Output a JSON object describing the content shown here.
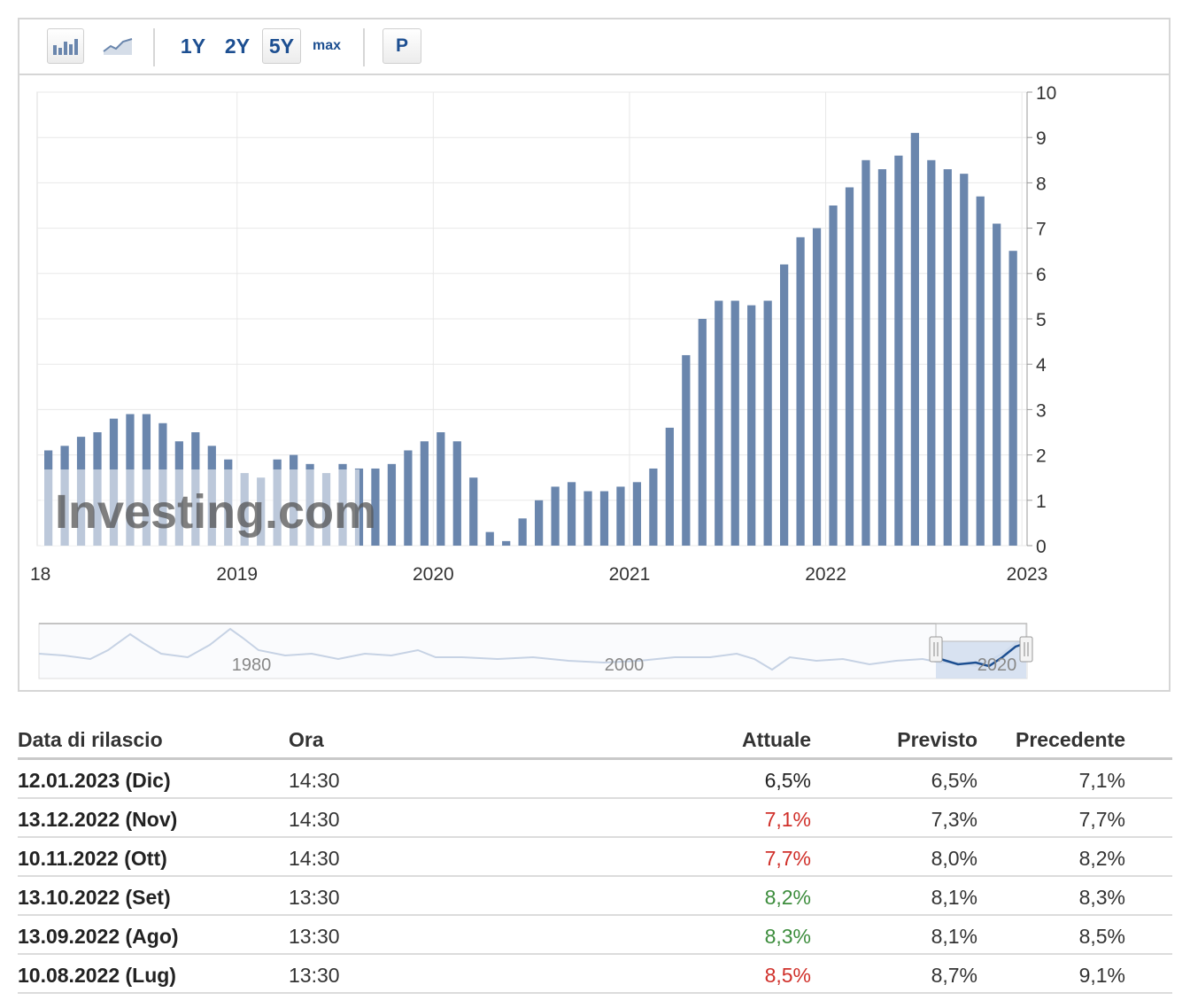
{
  "toolbar": {
    "ranges": [
      "1Y",
      "2Y",
      "5Y",
      "max"
    ],
    "active_range": "5Y",
    "print_label": "P",
    "bar_icon": "bar-chart-icon",
    "line_icon": "line-chart-icon"
  },
  "colors": {
    "bar": "#6a86ad",
    "bar_faded": "#c3cfe0",
    "grid": "#e8e8e8",
    "axis_text": "#333333",
    "positive": "#3d8d3d",
    "negative": "#d0302a",
    "neutral": "#222222"
  },
  "chart_data": {
    "type": "bar",
    "y_axis_position": "right",
    "ylim": [
      0,
      10
    ],
    "y_ticks": [
      0,
      1,
      2,
      3,
      4,
      5,
      6,
      7,
      8,
      9,
      10
    ],
    "x_tick_labels": [
      "18",
      "2019",
      "2020",
      "2021",
      "2022",
      "2023"
    ],
    "grid": true,
    "watermark": "Investing.com",
    "values": [
      2.1,
      2.2,
      2.4,
      2.5,
      2.8,
      2.9,
      2.9,
      2.7,
      2.3,
      2.5,
      2.2,
      1.9,
      1.6,
      1.5,
      1.9,
      2.0,
      1.8,
      1.6,
      1.8,
      1.7,
      1.7,
      1.8,
      2.1,
      2.3,
      2.5,
      2.3,
      1.5,
      0.3,
      0.1,
      0.6,
      1.0,
      1.3,
      1.4,
      1.2,
      1.2,
      1.3,
      1.4,
      1.7,
      2.6,
      4.2,
      5.0,
      5.4,
      5.4,
      5.3,
      5.4,
      6.2,
      6.8,
      7.0,
      7.5,
      7.9,
      8.5,
      8.3,
      8.6,
      9.1,
      8.5,
      8.3,
      8.2,
      7.7,
      7.1,
      6.5
    ]
  },
  "navigator": {
    "labels": [
      "1980",
      "2000",
      "2020"
    ]
  },
  "table": {
    "headers": {
      "date": "Data di rilascio",
      "time": "Ora",
      "actual": "Attuale",
      "forecast": "Previsto",
      "previous": "Precedente"
    },
    "rows": [
      {
        "date": "12.01.2023 (Dic)",
        "time": "14:30",
        "actual": "6,5%",
        "forecast": "6,5%",
        "previous": "7,1%",
        "status": "neutral"
      },
      {
        "date": "13.12.2022 (Nov)",
        "time": "14:30",
        "actual": "7,1%",
        "forecast": "7,3%",
        "previous": "7,7%",
        "status": "negative"
      },
      {
        "date": "10.11.2022 (Ott)",
        "time": "14:30",
        "actual": "7,7%",
        "forecast": "8,0%",
        "previous": "8,2%",
        "status": "negative"
      },
      {
        "date": "13.10.2022 (Set)",
        "time": "13:30",
        "actual": "8,2%",
        "forecast": "8,1%",
        "previous": "8,3%",
        "status": "positive"
      },
      {
        "date": "13.09.2022 (Ago)",
        "time": "13:30",
        "actual": "8,3%",
        "forecast": "8,1%",
        "previous": "8,5%",
        "status": "positive"
      },
      {
        "date": "10.08.2022 (Lug)",
        "time": "13:30",
        "actual": "8,5%",
        "forecast": "8,7%",
        "previous": "9,1%",
        "status": "negative"
      }
    ]
  }
}
